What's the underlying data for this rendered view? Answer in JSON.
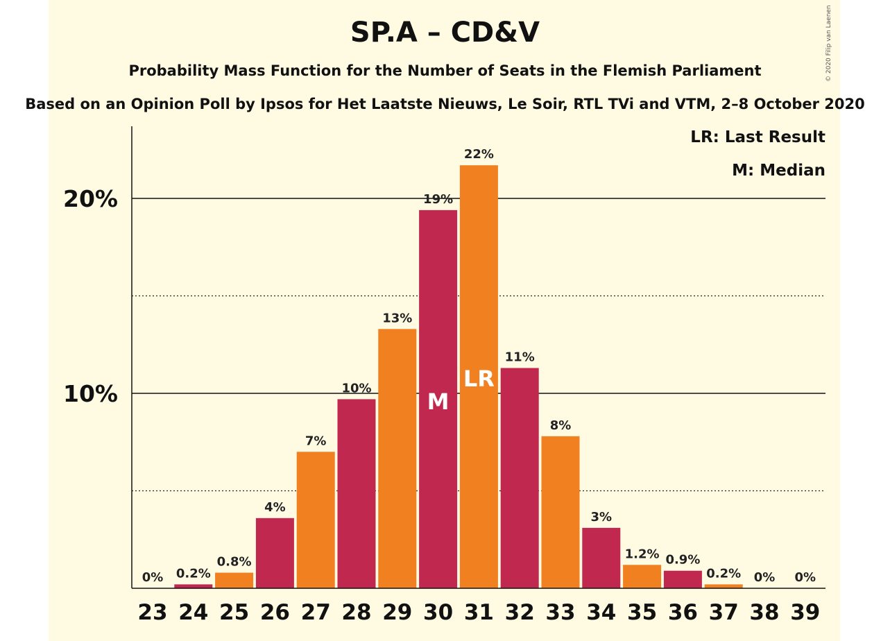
{
  "title": "SP.A – CD&V",
  "subtitle": "Probability Mass Function for the Number of Seats in the Flemish Parliament",
  "subtitle2": "Based on an Opinion Poll by Ipsos for Het Laatste Nieuws, Le Soir, RTL TVi and VTM, 2–8 October 2020",
  "copyright": "© 2020 Filip van Laenen",
  "legend": {
    "last_result": "LR: Last Result",
    "median": "M: Median"
  },
  "colors": {
    "crimson": "#c0284f",
    "orange": "#f08020",
    "background": "#fffbe3"
  },
  "chart_data": {
    "type": "bar",
    "categories": [
      "23",
      "24",
      "25",
      "26",
      "27",
      "28",
      "29",
      "30",
      "31",
      "32",
      "33",
      "34",
      "35",
      "36",
      "37",
      "38",
      "39"
    ],
    "values": [
      0,
      0.2,
      0.8,
      3.6,
      7.0,
      9.7,
      13.3,
      19.4,
      21.7,
      11.3,
      7.8,
      3.1,
      1.2,
      0.9,
      0.2,
      0,
      0
    ],
    "labels": [
      "0%",
      "0.2%",
      "0.8%",
      "4%",
      "7%",
      "10%",
      "13%",
      "19%",
      "22%",
      "11%",
      "8%",
      "3%",
      "1.2%",
      "0.9%",
      "0.2%",
      "0%",
      "0%"
    ],
    "bar_colors": [
      "crimson",
      "crimson",
      "orange",
      "crimson",
      "orange",
      "crimson",
      "orange",
      "crimson",
      "orange",
      "crimson",
      "orange",
      "crimson",
      "orange",
      "crimson",
      "orange",
      "crimson",
      "orange"
    ],
    "ylim": [
      0,
      23
    ],
    "yticks": [
      10,
      20
    ],
    "ytick_labels": [
      "10%",
      "20%"
    ],
    "minor_gridlines": [
      5,
      15
    ],
    "markers": [
      {
        "category": "30",
        "text": "M"
      },
      {
        "category": "31",
        "text": "LR"
      }
    ]
  }
}
